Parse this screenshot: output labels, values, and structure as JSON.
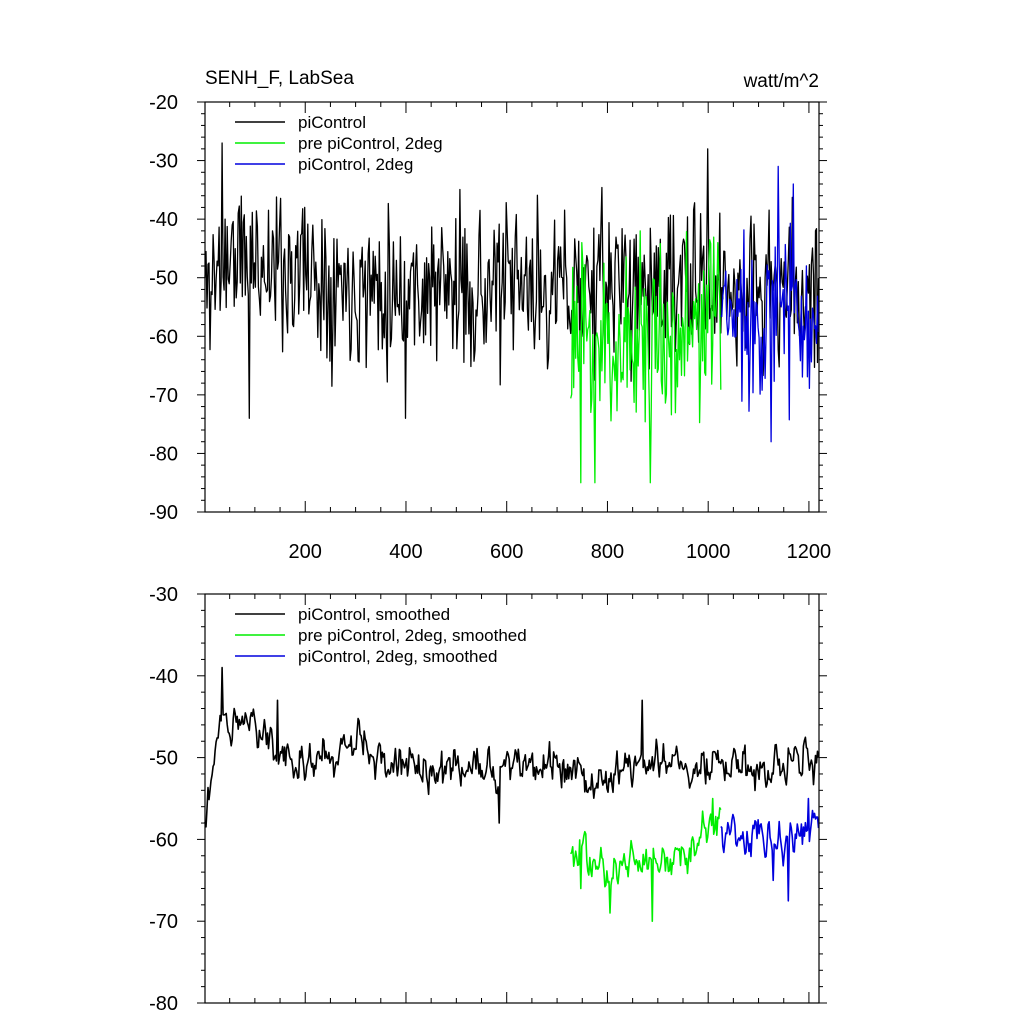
{
  "chart_data": [
    {
      "type": "line",
      "title": "SENH_F, LabSea",
      "units": "watt/m^2",
      "xlim": [
        1,
        1220
      ],
      "ylim": [
        -90,
        -20
      ],
      "xticks": [
        200,
        400,
        600,
        800,
        1000,
        1200
      ],
      "xtick_labels": [
        "200",
        "400",
        "600",
        "800",
        "1000",
        "1200"
      ],
      "yticks": [
        -90,
        -80,
        -70,
        -60,
        -50,
        -40,
        -30,
        -20
      ],
      "ytick_labels": [
        "-90",
        "-80",
        "-70",
        "-60",
        "-50",
        "-40",
        "-30",
        "-20"
      ],
      "legend_position": "top-left",
      "series": [
        {
          "name": "piControl",
          "color": "#000000",
          "x_start": 1,
          "x_end": 1220,
          "mean": [
            [
              1,
              -52
            ],
            [
              50,
              -46
            ],
            [
              150,
              -48
            ],
            [
              300,
              -51
            ],
            [
              500,
              -52
            ],
            [
              700,
              -52
            ],
            [
              850,
              -51
            ],
            [
              1000,
              -52
            ],
            [
              1220,
              -52
            ]
          ],
          "amplitude": 6.5,
          "seed": 11,
          "marks": [
            [
              35,
              -27
            ],
            [
              90,
              -74
            ],
            [
              200,
              -38
            ],
            [
              400,
              -74
            ],
            [
              1000,
              -28
            ]
          ]
        },
        {
          "name": "pre piControl, 2deg",
          "color": "#00ee00",
          "x_start": 727,
          "x_end": 1025,
          "mean": [
            [
              727,
              -60
            ],
            [
              800,
              -62
            ],
            [
              900,
              -60
            ],
            [
              1025,
              -58
            ]
          ],
          "amplitude": 7.5,
          "seed": 23,
          "marks": [
            [
              747,
              -85
            ],
            [
              776,
              -85
            ],
            [
              885,
              -85
            ],
            [
              865,
              -42
            ],
            [
              1020,
              -44
            ]
          ]
        },
        {
          "name": "piControl, 2deg",
          "color": "#0000dd",
          "x_start": 1025,
          "x_end": 1220,
          "mean": [
            [
              1025,
              -57
            ],
            [
              1100,
              -56
            ],
            [
              1220,
              -56
            ]
          ],
          "amplitude": 7,
          "seed": 37,
          "marks": [
            [
              1125,
              -78
            ],
            [
              1140,
              -31
            ],
            [
              1170,
              -34
            ]
          ]
        }
      ]
    },
    {
      "type": "line",
      "title": "",
      "xlim": [
        1,
        1220
      ],
      "ylim": [
        -80,
        -30
      ],
      "xticks": [
        200,
        400,
        600,
        800,
        1000,
        1200
      ],
      "xtick_labels": [],
      "yticks": [
        -80,
        -70,
        -60,
        -50,
        -40,
        -30
      ],
      "ytick_labels": [
        "-80",
        "-70",
        "-60",
        "-50",
        "-40",
        "-30"
      ],
      "legend_position": "top-left",
      "series": [
        {
          "name": "piControl, smoothed",
          "color": "#000000",
          "x_start": 1,
          "x_end": 1220,
          "mean": [
            [
              1,
              -56
            ],
            [
              10,
              -54
            ],
            [
              30,
              -46
            ],
            [
              50,
              -45
            ],
            [
              100,
              -46
            ],
            [
              160,
              -49
            ],
            [
              250,
              -51
            ],
            [
              300,
              -48
            ],
            [
              400,
              -51
            ],
            [
              500,
              -52
            ],
            [
              600,
              -51
            ],
            [
              700,
              -51
            ],
            [
              760,
              -53
            ],
            [
              850,
              -51
            ],
            [
              950,
              -51
            ],
            [
              1050,
              -51
            ],
            [
              1220,
              -51
            ]
          ],
          "amplitude": 2.4,
          "seed": 51,
          "marks": [
            [
              35,
              -39
            ],
            [
              145,
              -43
            ],
            [
              585,
              -58
            ],
            [
              870,
              -43
            ],
            [
              1130,
              -52
            ]
          ]
        },
        {
          "name": "pre piControl, 2deg, smoothed",
          "color": "#00ee00",
          "x_start": 727,
          "x_end": 1025,
          "mean": [
            [
              727,
              -60
            ],
            [
              760,
              -63
            ],
            [
              800,
              -64
            ],
            [
              850,
              -61
            ],
            [
              900,
              -63
            ],
            [
              960,
              -62
            ],
            [
              1025,
              -57
            ]
          ],
          "amplitude": 2.2,
          "seed": 63,
          "marks": [
            [
              747,
              -66
            ],
            [
              805,
              -69
            ],
            [
              890,
              -70
            ],
            [
              1010,
              -55
            ]
          ]
        },
        {
          "name": "piControl, 2deg, smoothed",
          "color": "#0000dd",
          "x_start": 1025,
          "x_end": 1220,
          "mean": [
            [
              1025,
              -59
            ],
            [
              1100,
              -59
            ],
            [
              1150,
              -61
            ],
            [
              1220,
              -58
            ]
          ],
          "amplitude": 2.3,
          "seed": 79,
          "marks": [
            [
              1130,
              -65
            ],
            [
              1160,
              -67.5
            ],
            [
              1200,
              -55
            ]
          ]
        }
      ]
    }
  ]
}
